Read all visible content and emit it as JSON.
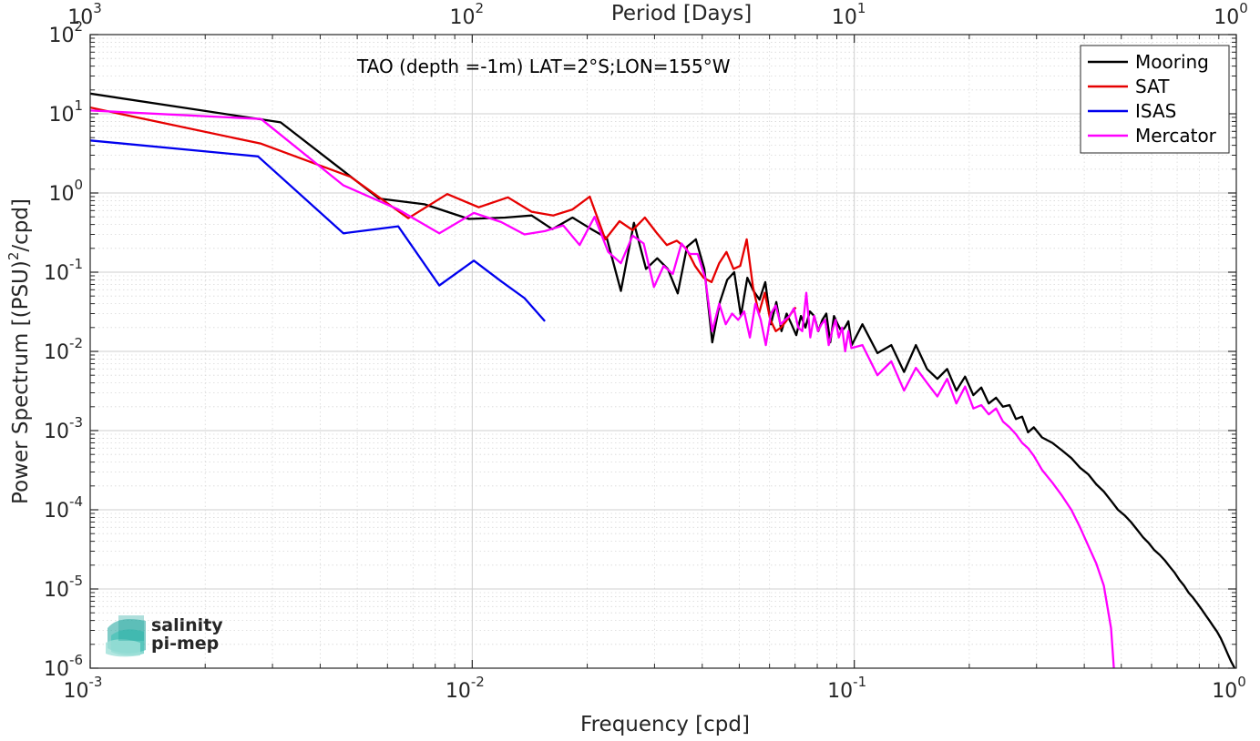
{
  "chart_data": {
    "type": "line",
    "xscale": "log",
    "yscale": "log",
    "xlim": [
      0.001,
      1
    ],
    "ylim": [
      1e-06,
      100
    ],
    "xlabel": "Frequency [cpd]",
    "ylabel_main": "Power Spectrum [(PSU)",
    "ylabel_sup": "2",
    "ylabel_tail": "/cpd]",
    "top_axis_label": "Period [Days]",
    "annotation": "TAO (depth =-1m) LAT=2°S;LON=155°W",
    "grid": true,
    "minor_grid": true,
    "legend_location": "top-right",
    "x_ticks": [
      {
        "value": 0.001,
        "base": "10",
        "exp": "-3"
      },
      {
        "value": 0.01,
        "base": "10",
        "exp": "-2"
      },
      {
        "value": 0.1,
        "base": "10",
        "exp": "-1"
      },
      {
        "value": 1,
        "base": "10",
        "exp": "0"
      }
    ],
    "top_ticks": [
      {
        "value": 0.001,
        "base": "10",
        "exp": "3"
      },
      {
        "value": 0.01,
        "base": "10",
        "exp": "2"
      },
      {
        "value": 0.1,
        "base": "10",
        "exp": "1"
      },
      {
        "value": 1,
        "base": "10",
        "exp": "0"
      }
    ],
    "y_ticks": [
      {
        "value": 100,
        "base": "10",
        "exp": "2"
      },
      {
        "value": 10,
        "base": "10",
        "exp": "1"
      },
      {
        "value": 1,
        "base": "10",
        "exp": "0"
      },
      {
        "value": 0.1,
        "base": "10",
        "exp": "-1"
      },
      {
        "value": 0.01,
        "base": "10",
        "exp": "-2"
      },
      {
        "value": 0.001,
        "base": "10",
        "exp": "-3"
      },
      {
        "value": 0.0001,
        "base": "10",
        "exp": "-4"
      },
      {
        "value": 1e-05,
        "base": "10",
        "exp": "-5"
      },
      {
        "value": 1e-06,
        "base": "10",
        "exp": "-6"
      }
    ],
    "series": [
      {
        "name": "Mooring",
        "color": "#000000",
        "x": [
          0.001,
          0.00315,
          0.0057,
          0.0075,
          0.0098,
          0.0122,
          0.0143,
          0.0162,
          0.0183,
          0.0205,
          0.0225,
          0.0245,
          0.0265,
          0.0285,
          0.0305,
          0.0325,
          0.0345,
          0.0365,
          0.0385,
          0.0405,
          0.0425,
          0.0445,
          0.0465,
          0.0485,
          0.0505,
          0.0525,
          0.0545,
          0.0565,
          0.0585,
          0.0605,
          0.0625,
          0.0645,
          0.0665,
          0.0685,
          0.0705,
          0.0725,
          0.0745,
          0.0765,
          0.0785,
          0.0805,
          0.0825,
          0.0845,
          0.0865,
          0.0885,
          0.0905,
          0.0925,
          0.0945,
          0.0965,
          0.0985,
          0.105,
          0.115,
          0.125,
          0.135,
          0.145,
          0.155,
          0.165,
          0.175,
          0.185,
          0.195,
          0.205,
          0.215,
          0.225,
          0.235,
          0.245,
          0.255,
          0.265,
          0.275,
          0.285,
          0.295,
          0.31,
          0.33,
          0.35,
          0.37,
          0.39,
          0.41,
          0.43,
          0.45,
          0.47,
          0.49,
          0.51,
          0.53,
          0.55,
          0.57,
          0.59,
          0.61,
          0.63,
          0.65,
          0.67,
          0.69,
          0.71,
          0.73,
          0.75,
          0.77,
          0.79,
          0.81,
          0.83,
          0.85,
          0.87,
          0.89,
          0.91,
          0.93,
          0.95,
          0.97,
          0.99
        ],
        "y": [
          18,
          7.8,
          0.85,
          0.72,
          0.47,
          0.49,
          0.52,
          0.35,
          0.49,
          0.35,
          0.27,
          0.058,
          0.42,
          0.11,
          0.15,
          0.11,
          0.054,
          0.21,
          0.26,
          0.11,
          0.013,
          0.042,
          0.08,
          0.1,
          0.028,
          0.085,
          0.058,
          0.045,
          0.075,
          0.022,
          0.042,
          0.018,
          0.03,
          0.022,
          0.016,
          0.028,
          0.02,
          0.032,
          0.028,
          0.018,
          0.025,
          0.03,
          0.013,
          0.028,
          0.022,
          0.018,
          0.02,
          0.024,
          0.012,
          0.022,
          0.0095,
          0.012,
          0.0055,
          0.012,
          0.006,
          0.0045,
          0.006,
          0.0032,
          0.0048,
          0.0028,
          0.0035,
          0.0022,
          0.0026,
          0.002,
          0.0021,
          0.0014,
          0.0015,
          0.00095,
          0.0011,
          0.00082,
          0.0007,
          0.00056,
          0.00045,
          0.00034,
          0.00028,
          0.00021,
          0.00017,
          0.00013,
          0.0001,
          8.5e-05,
          7e-05,
          5.6e-05,
          4.5e-05,
          3.8e-05,
          3.1e-05,
          2.7e-05,
          2.3e-05,
          1.9e-05,
          1.6e-05,
          1.3e-05,
          1.1e-05,
          9e-06,
          7.8e-06,
          6.6e-06,
          5.6e-06,
          4.7e-06,
          4e-06,
          3.4e-06,
          2.9e-06,
          2.4e-06,
          1.9e-06,
          1.5e-06,
          1.2e-06,
          1e-06
        ]
      },
      {
        "name": "SAT",
        "color": "#e60000",
        "x": [
          0.001,
          0.0028,
          0.0048,
          0.0068,
          0.0086,
          0.0104,
          0.0124,
          0.0143,
          0.0163,
          0.0183,
          0.0203,
          0.0223,
          0.0243,
          0.0263,
          0.0283,
          0.0303,
          0.0323,
          0.0343,
          0.0363,
          0.0383,
          0.0403,
          0.0423,
          0.0443,
          0.0463,
          0.0483,
          0.0503,
          0.0523,
          0.0543,
          0.0563,
          0.0583,
          0.0603,
          0.0623,
          0.0643,
          0.0663,
          0.0683,
          0.0703
        ],
        "y": [
          12,
          4.2,
          1.6,
          0.48,
          0.97,
          0.66,
          0.88,
          0.58,
          0.52,
          0.62,
          0.9,
          0.26,
          0.44,
          0.34,
          0.49,
          0.32,
          0.22,
          0.25,
          0.2,
          0.12,
          0.085,
          0.075,
          0.13,
          0.18,
          0.11,
          0.12,
          0.26,
          0.065,
          0.03,
          0.055,
          0.025,
          0.018,
          0.02,
          0.024,
          0.03,
          0.036
        ]
      },
      {
        "name": "ISAS",
        "color": "#0000ee",
        "x": [
          0.001,
          0.00275,
          0.0046,
          0.0064,
          0.0082,
          0.0101,
          0.0119,
          0.0137,
          0.0155
        ],
        "y": [
          4.6,
          2.9,
          0.31,
          0.38,
          0.068,
          0.14,
          0.077,
          0.047,
          0.024
        ]
      },
      {
        "name": "Mercator",
        "color": "#ff00ff",
        "x": [
          0.001,
          0.0028,
          0.0046,
          0.0064,
          0.0082,
          0.0101,
          0.0119,
          0.0137,
          0.0155,
          0.0173,
          0.0191,
          0.0209,
          0.0227,
          0.0245,
          0.0263,
          0.0281,
          0.0299,
          0.0317,
          0.0335,
          0.0353,
          0.0371,
          0.0389,
          0.0407,
          0.0425,
          0.0443,
          0.0461,
          0.0479,
          0.0497,
          0.0515,
          0.0533,
          0.0551,
          0.0569,
          0.0587,
          0.0605,
          0.0623,
          0.0641,
          0.0659,
          0.0677,
          0.0695,
          0.0713,
          0.0731,
          0.0749,
          0.0767,
          0.0785,
          0.0803,
          0.0821,
          0.0839,
          0.0857,
          0.0875,
          0.0893,
          0.0911,
          0.0929,
          0.0947,
          0.0965,
          0.0983,
          0.105,
          0.115,
          0.125,
          0.135,
          0.145,
          0.155,
          0.165,
          0.175,
          0.185,
          0.195,
          0.205,
          0.215,
          0.225,
          0.235,
          0.245,
          0.255,
          0.265,
          0.275,
          0.285,
          0.295,
          0.31,
          0.33,
          0.35,
          0.37,
          0.39,
          0.41,
          0.43,
          0.45,
          0.47,
          0.478
        ],
        "y": [
          11,
          8.6,
          1.25,
          0.62,
          0.31,
          0.56,
          0.43,
          0.3,
          0.33,
          0.39,
          0.22,
          0.5,
          0.18,
          0.13,
          0.29,
          0.23,
          0.065,
          0.12,
          0.095,
          0.23,
          0.17,
          0.17,
          0.085,
          0.018,
          0.04,
          0.022,
          0.03,
          0.025,
          0.032,
          0.015,
          0.04,
          0.025,
          0.012,
          0.03,
          0.038,
          0.022,
          0.025,
          0.028,
          0.035,
          0.02,
          0.018,
          0.055,
          0.015,
          0.028,
          0.018,
          0.022,
          0.025,
          0.012,
          0.018,
          0.025,
          0.015,
          0.02,
          0.01,
          0.018,
          0.011,
          0.012,
          0.005,
          0.0075,
          0.0032,
          0.0062,
          0.004,
          0.0027,
          0.0045,
          0.0022,
          0.0036,
          0.0019,
          0.0021,
          0.0016,
          0.0019,
          0.0013,
          0.0011,
          0.0009,
          0.0007,
          0.0006,
          0.00048,
          0.00032,
          0.00022,
          0.00015,
          0.0001,
          6e-05,
          3.5e-05,
          2.1e-05,
          1.1e-05,
          3.2e-06,
          1e-06
        ]
      }
    ]
  },
  "logo": {
    "line1": "salinity",
    "line2": "pi-mep",
    "color": "#1aa39a"
  }
}
